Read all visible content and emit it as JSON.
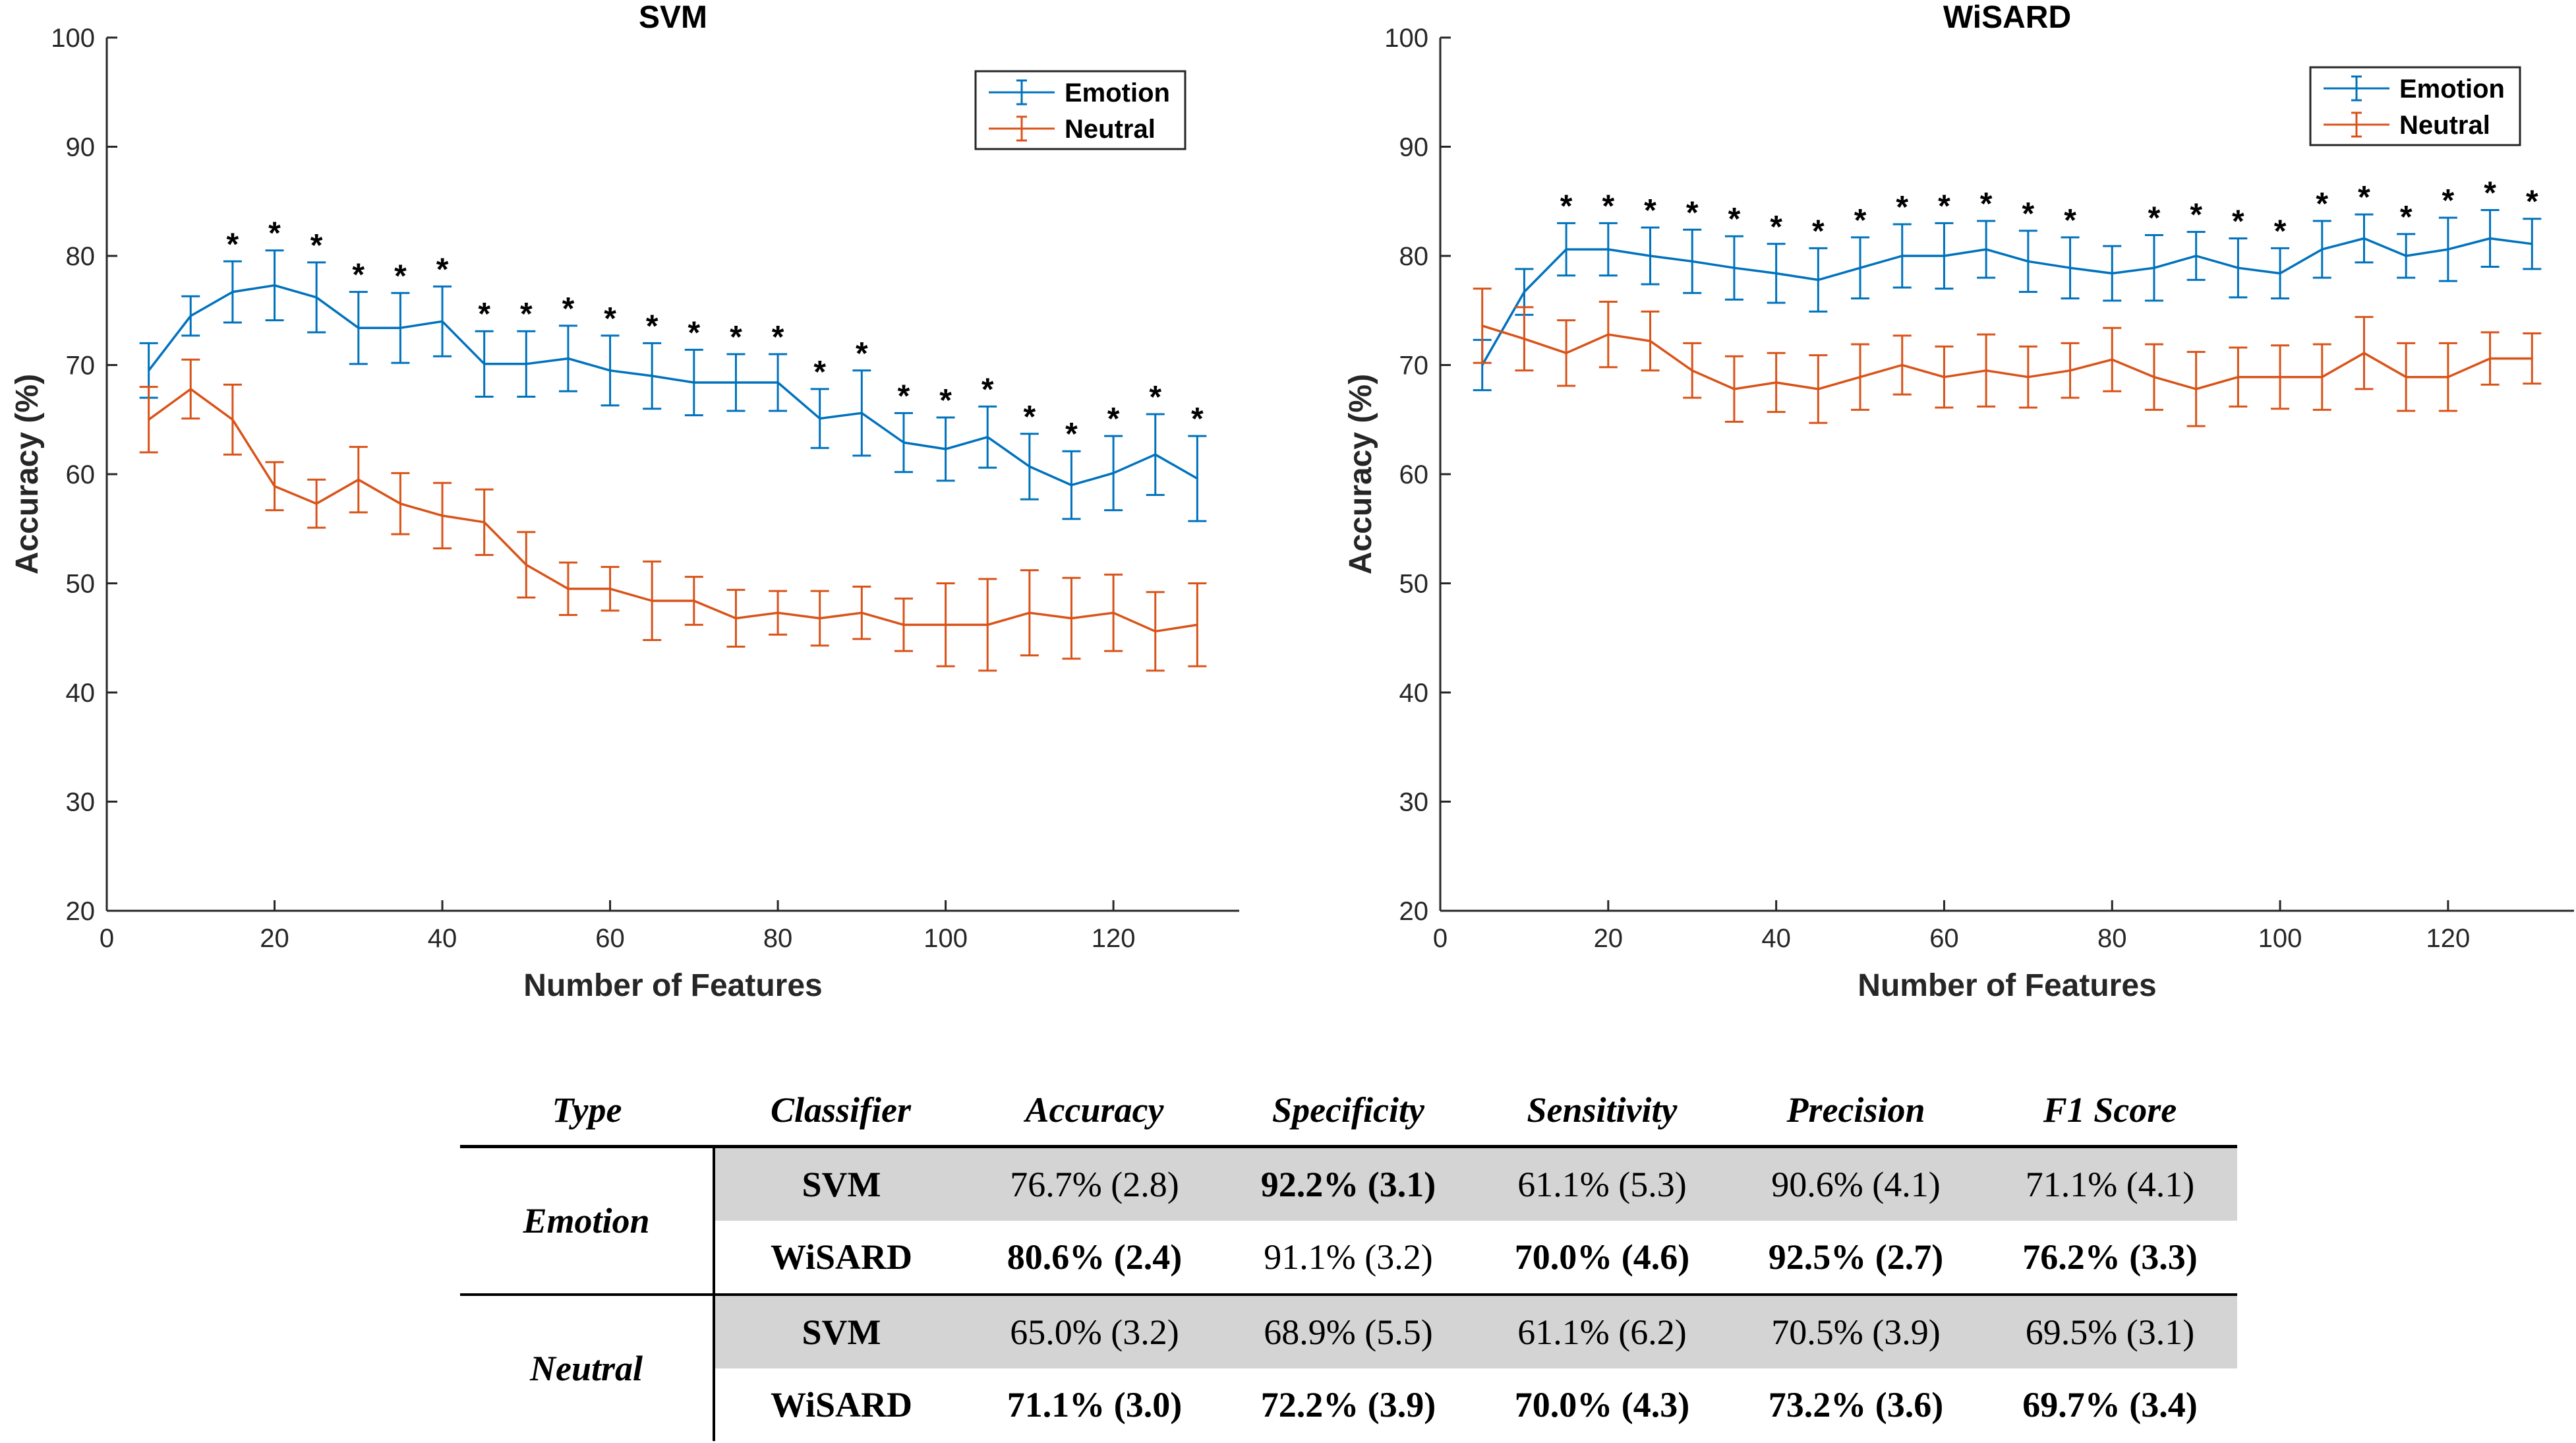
{
  "colors": {
    "emotion": "#0072BD",
    "neutral": "#D95319",
    "axis": "#262626",
    "shade": "#d4d4d4"
  },
  "chart_data": [
    {
      "type": "line",
      "title": "SVM",
      "xlabel": "Number of Features",
      "ylabel": "Accuracy (%)",
      "xlim": [
        0,
        135
      ],
      "ylim": [
        20,
        100
      ],
      "xticks": [
        0,
        20,
        40,
        60,
        80,
        100,
        120
      ],
      "yticks": [
        20,
        30,
        40,
        50,
        60,
        70,
        80,
        90,
        100
      ],
      "legend_position": "top-right",
      "x": [
        5,
        10,
        15,
        20,
        25,
        30,
        35,
        40,
        45,
        50,
        55,
        60,
        65,
        70,
        75,
        80,
        85,
        90,
        95,
        100,
        105,
        110,
        115,
        120,
        125,
        130
      ],
      "series": [
        {
          "name": "Emotion",
          "color": "#0072BD",
          "values": [
            69.5,
            74.5,
            76.7,
            77.3,
            76.2,
            73.4,
            73.4,
            74.0,
            70.1,
            70.1,
            70.6,
            69.5,
            69.0,
            68.4,
            68.4,
            68.4,
            65.1,
            65.6,
            62.9,
            62.3,
            63.4,
            60.7,
            59.0,
            60.1,
            61.8,
            59.6
          ],
          "errors": [
            2.5,
            1.8,
            2.8,
            3.2,
            3.2,
            3.3,
            3.2,
            3.2,
            3.0,
            3.0,
            3.0,
            3.2,
            3.0,
            3.0,
            2.6,
            2.6,
            2.7,
            3.9,
            2.7,
            2.9,
            2.8,
            3.0,
            3.1,
            3.4,
            3.7,
            3.9
          ]
        },
        {
          "name": "Neutral",
          "color": "#D95319",
          "values": [
            65.0,
            67.8,
            65.0,
            58.9,
            57.3,
            59.5,
            57.3,
            56.2,
            55.6,
            51.7,
            49.5,
            49.5,
            48.4,
            48.4,
            46.8,
            47.3,
            46.8,
            47.3,
            46.2,
            46.2,
            46.2,
            47.3,
            46.8,
            47.3,
            45.6,
            46.2
          ],
          "errors": [
            3.0,
            2.7,
            3.2,
            2.2,
            2.2,
            3.0,
            2.8,
            3.0,
            3.0,
            3.0,
            2.4,
            2.0,
            3.6,
            2.2,
            2.6,
            2.0,
            2.5,
            2.4,
            2.4,
            3.8,
            4.2,
            3.9,
            3.7,
            3.5,
            3.6,
            3.8
          ]
        }
      ],
      "significance_marker": "*",
      "significant_x": [
        15,
        20,
        25,
        30,
        35,
        40,
        45,
        50,
        55,
        60,
        65,
        70,
        75,
        80,
        85,
        90,
        95,
        100,
        105,
        110,
        115,
        120,
        125,
        130
      ]
    },
    {
      "type": "line",
      "title": "WiSARD",
      "xlabel": "Number of Features",
      "ylabel": "Accuracy (%)",
      "xlim": [
        0,
        135
      ],
      "ylim": [
        20,
        100
      ],
      "xticks": [
        0,
        20,
        40,
        60,
        80,
        100,
        120
      ],
      "yticks": [
        20,
        30,
        40,
        50,
        60,
        70,
        80,
        90,
        100
      ],
      "legend_position": "top-right",
      "x": [
        5,
        10,
        15,
        20,
        25,
        30,
        35,
        40,
        45,
        50,
        55,
        60,
        65,
        70,
        75,
        80,
        85,
        90,
        95,
        100,
        105,
        110,
        115,
        120,
        125,
        130
      ],
      "series": [
        {
          "name": "Emotion",
          "color": "#0072BD",
          "values": [
            70.0,
            76.7,
            80.6,
            80.6,
            80.0,
            79.5,
            78.9,
            78.4,
            77.8,
            78.9,
            80.0,
            80.0,
            80.6,
            79.5,
            78.9,
            78.4,
            78.9,
            80.0,
            78.9,
            78.4,
            80.6,
            81.6,
            80.0,
            80.6,
            81.6,
            81.1
          ],
          "errors": [
            2.3,
            2.1,
            2.4,
            2.4,
            2.6,
            2.9,
            2.9,
            2.7,
            2.9,
            2.8,
            2.9,
            3.0,
            2.6,
            2.8,
            2.8,
            2.5,
            3.0,
            2.2,
            2.7,
            2.3,
            2.6,
            2.2,
            2.0,
            2.9,
            2.6,
            2.3
          ]
        },
        {
          "name": "Neutral",
          "color": "#D95319",
          "values": [
            73.6,
            72.4,
            71.1,
            72.8,
            72.2,
            69.5,
            67.8,
            68.4,
            67.8,
            68.9,
            70.0,
            68.9,
            69.5,
            68.9,
            69.5,
            70.5,
            68.9,
            67.8,
            68.9,
            68.9,
            68.9,
            71.1,
            68.9,
            68.9,
            70.6,
            70.6
          ],
          "errors": [
            3.4,
            2.9,
            3.0,
            3.0,
            2.7,
            2.5,
            3.0,
            2.7,
            3.1,
            3.0,
            2.7,
            2.8,
            3.3,
            2.8,
            2.5,
            2.9,
            3.0,
            3.4,
            2.7,
            2.9,
            3.0,
            3.3,
            3.1,
            3.1,
            2.4,
            2.3
          ]
        }
      ],
      "significance_marker": "*",
      "significant_x": [
        15,
        20,
        25,
        30,
        35,
        40,
        45,
        50,
        55,
        60,
        65,
        70,
        75,
        85,
        90,
        95,
        100,
        105,
        110,
        115,
        120,
        125,
        130
      ]
    }
  ],
  "table": {
    "headers": [
      "Type",
      "Classifier",
      "Accuracy",
      "Specificity",
      "Sensitivity",
      "Precision",
      "F1 Score"
    ],
    "emotion": {
      "label": "Emotion",
      "svm": {
        "classifier": "SVM",
        "accuracy": "76.7% (2.8)",
        "specificity": "92.2% (3.1)",
        "sensitivity": "61.1% (5.3)",
        "precision": "90.6% (4.1)",
        "f1": "71.1% (4.1)"
      },
      "wisard": {
        "classifier": "WiSARD",
        "accuracy": "80.6% (2.4)",
        "specificity": "91.1% (3.2)",
        "sensitivity": "70.0% (4.6)",
        "precision": "92.5% (2.7)",
        "f1": "76.2% (3.3)"
      }
    },
    "neutral": {
      "label": "Neutral",
      "svm": {
        "classifier": "SVM",
        "accuracy": "65.0% (3.2)",
        "specificity": "68.9% (5.5)",
        "sensitivity": "61.1% (6.2)",
        "precision": "70.5% (3.9)",
        "f1": "69.5% (3.1)"
      },
      "wisard": {
        "classifier": "WiSARD",
        "accuracy": "71.1% (3.0)",
        "specificity": "72.2% (3.9)",
        "sensitivity": "70.0% (4.3)",
        "precision": "73.2% (3.6)",
        "f1": "69.7% (3.4)"
      }
    }
  }
}
